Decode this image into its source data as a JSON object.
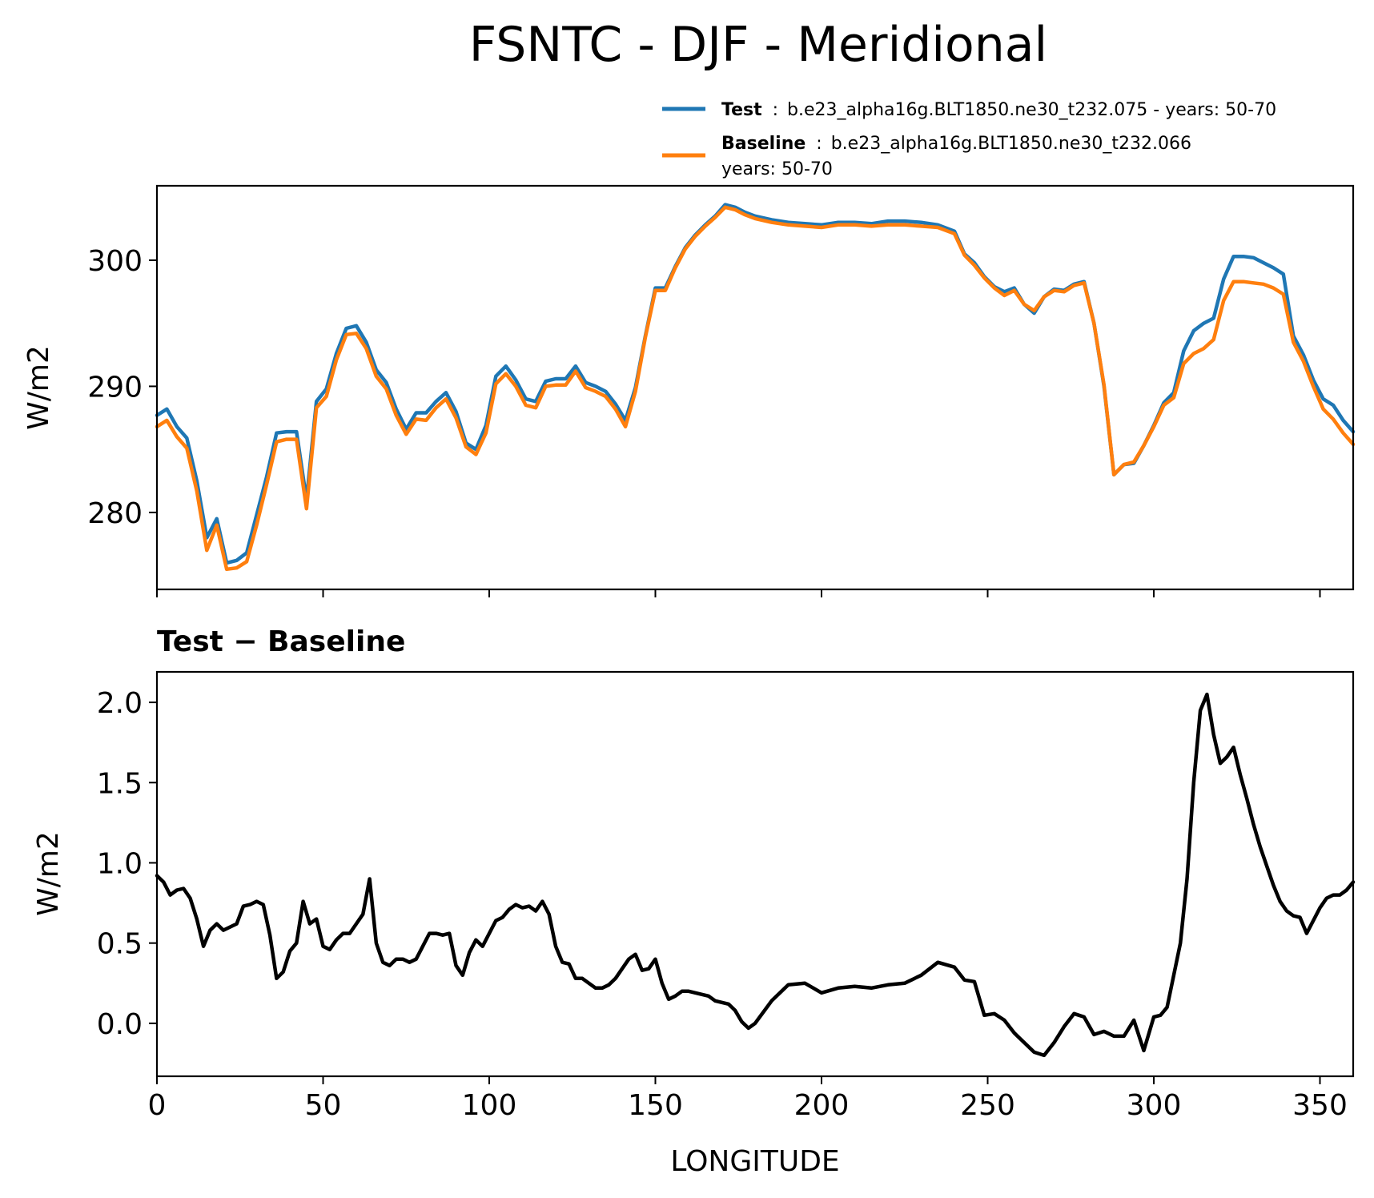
{
  "title": "FSNTC - DJF - Meridional",
  "colors": {
    "test": "#1f77b4",
    "baseline": "#ff7f0e",
    "diff": "#000000"
  },
  "legend": {
    "test_label": "Test",
    "test_sep": ":",
    "test_desc": "b.e23_alpha16g.BLT1850.ne30_t232.075 - years: 50-70",
    "baseline_label": "Baseline",
    "baseline_sep": ":",
    "baseline_desc": "b.e23_alpha16g.BLT1850.ne30_t232.066",
    "baseline_desc2": "years: 50-70"
  },
  "chart_data": [
    {
      "type": "line",
      "panel": "top",
      "title": "",
      "xlabel": "",
      "ylabel": "W/m2",
      "xlim": [
        0,
        360
      ],
      "ylim": [
        273.9,
        305.9
      ],
      "xticks": [
        0,
        50,
        100,
        150,
        200,
        250,
        300,
        350
      ],
      "yticks": [
        280,
        290,
        300
      ],
      "ytick_labels": [
        "280",
        "290",
        "300"
      ],
      "x": [
        0,
        3,
        6,
        9,
        12,
        15,
        18,
        21,
        24,
        27,
        30,
        33,
        36,
        39,
        42,
        45,
        48,
        51,
        54,
        57,
        60,
        63,
        66,
        69,
        72,
        75,
        78,
        81,
        84,
        87,
        90,
        93,
        96,
        99,
        102,
        105,
        108,
        111,
        114,
        117,
        120,
        123,
        126,
        129,
        132,
        135,
        138,
        141,
        144,
        147,
        150,
        153,
        156,
        159,
        162,
        165,
        168,
        171,
        174,
        177,
        180,
        185,
        190,
        195,
        200,
        205,
        210,
        215,
        220,
        225,
        230,
        235,
        240,
        243,
        246,
        249,
        252,
        255,
        258,
        261,
        264,
        267,
        270,
        273,
        276,
        279,
        282,
        285,
        288,
        291,
        294,
        297,
        300,
        303,
        306,
        309,
        312,
        315,
        318,
        321,
        324,
        327,
        330,
        333,
        336,
        339,
        342,
        345,
        348,
        351,
        354,
        357,
        360
      ],
      "series": [
        {
          "name": "Test",
          "values": [
            287.7,
            288.2,
            286.8,
            285.9,
            282.5,
            278.0,
            279.5,
            276.0,
            276.2,
            276.8,
            279.8,
            282.8,
            286.3,
            286.4,
            286.4,
            281.0,
            288.8,
            289.8,
            292.6,
            294.6,
            294.8,
            293.5,
            291.3,
            290.3,
            288.2,
            286.6,
            287.9,
            287.9,
            288.8,
            289.5,
            288.0,
            285.5,
            285.0,
            286.9,
            290.8,
            291.6,
            290.5,
            289.0,
            288.8,
            290.4,
            290.6,
            290.6,
            291.6,
            290.3,
            290.0,
            289.6,
            288.6,
            287.3,
            289.9,
            294.0,
            297.8,
            297.8,
            299.5,
            301.0,
            302.0,
            302.8,
            303.5,
            304.4,
            304.2,
            303.8,
            303.5,
            303.2,
            303.0,
            302.9,
            302.8,
            303.0,
            303.0,
            302.9,
            303.1,
            303.1,
            303.0,
            302.8,
            302.3,
            300.5,
            299.8,
            298.7,
            297.9,
            297.5,
            297.8,
            296.5,
            295.8,
            297.1,
            297.7,
            297.6,
            298.1,
            298.3,
            295.0,
            290.0,
            283.0,
            283.8,
            283.9,
            285.3,
            286.9,
            288.7,
            289.5,
            292.8,
            294.4,
            295.0,
            295.4,
            298.5,
            300.3,
            300.3,
            300.2,
            299.8,
            299.4,
            298.9,
            294.0,
            292.5,
            290.5,
            289.0,
            288.5,
            287.3,
            286.4
          ]
        },
        {
          "name": "Baseline",
          "values": [
            286.8,
            287.3,
            286.0,
            285.1,
            281.7,
            277.0,
            279.0,
            275.5,
            275.6,
            276.1,
            279.0,
            282.2,
            285.6,
            285.8,
            285.8,
            280.3,
            288.3,
            289.2,
            292.1,
            294.1,
            294.2,
            293.0,
            290.8,
            289.8,
            287.7,
            286.2,
            287.4,
            287.3,
            288.3,
            289.0,
            287.5,
            285.2,
            284.6,
            286.3,
            290.2,
            291.0,
            290.0,
            288.5,
            288.3,
            290.0,
            290.1,
            290.1,
            291.2,
            289.9,
            289.6,
            289.2,
            288.2,
            286.8,
            289.6,
            293.9,
            297.6,
            297.6,
            299.4,
            300.9,
            301.9,
            302.7,
            303.4,
            304.2,
            304.0,
            303.6,
            303.3,
            303.0,
            302.8,
            302.7,
            302.6,
            302.8,
            302.8,
            302.7,
            302.8,
            302.8,
            302.7,
            302.6,
            302.1,
            300.4,
            299.6,
            298.6,
            297.8,
            297.2,
            297.6,
            296.5,
            296.0,
            297.1,
            297.6,
            297.5,
            298.0,
            298.2,
            295.0,
            290.1,
            283.0,
            283.8,
            284.0,
            285.3,
            286.8,
            288.5,
            289.1,
            291.8,
            292.6,
            293.0,
            293.7,
            296.8,
            298.3,
            298.3,
            298.2,
            298.1,
            297.8,
            297.3,
            293.5,
            292.0,
            290.0,
            288.2,
            287.4,
            286.3,
            285.4
          ]
        }
      ]
    },
    {
      "type": "line",
      "panel": "bottom",
      "title": "Test − Baseline",
      "xlabel": "LONGITUDE",
      "ylabel": "W/m2",
      "xlim": [
        0,
        360
      ],
      "ylim": [
        -0.33,
        2.19
      ],
      "xticks": [
        0,
        50,
        100,
        150,
        200,
        250,
        300,
        350
      ],
      "xtick_labels": [
        "0",
        "50",
        "100",
        "150",
        "200",
        "250",
        "300",
        "350"
      ],
      "yticks": [
        0.0,
        0.5,
        1.0,
        1.5,
        2.0
      ],
      "ytick_labels": [
        "0.0",
        "0.5",
        "1.0",
        "1.5",
        "2.0"
      ],
      "x": [
        0,
        2,
        4,
        6,
        8,
        10,
        12,
        14,
        16,
        18,
        20,
        22,
        24,
        26,
        28,
        30,
        32,
        34,
        36,
        38,
        40,
        42,
        44,
        46,
        48,
        50,
        52,
        54,
        56,
        58,
        60,
        62,
        64,
        66,
        68,
        70,
        72,
        74,
        76,
        78,
        80,
        82,
        84,
        86,
        88,
        90,
        92,
        94,
        96,
        98,
        100,
        102,
        104,
        106,
        108,
        110,
        112,
        114,
        116,
        118,
        120,
        122,
        124,
        126,
        128,
        130,
        132,
        134,
        136,
        138,
        140,
        142,
        144,
        146,
        148,
        150,
        152,
        154,
        156,
        158,
        160,
        162,
        164,
        166,
        168,
        170,
        172,
        174,
        176,
        178,
        180,
        185,
        190,
        195,
        200,
        205,
        210,
        215,
        220,
        225,
        230,
        235,
        240,
        243,
        246,
        249,
        252,
        255,
        258,
        261,
        264,
        267,
        270,
        273,
        276,
        279,
        282,
        285,
        288,
        291,
        294,
        297,
        300,
        302,
        304,
        306,
        308,
        310,
        312,
        314,
        316,
        318,
        320,
        322,
        324,
        326,
        328,
        330,
        332,
        334,
        336,
        338,
        340,
        342,
        344,
        346,
        348,
        350,
        352,
        354,
        356,
        358,
        360
      ],
      "values": [
        0.92,
        0.88,
        0.8,
        0.83,
        0.84,
        0.78,
        0.65,
        0.48,
        0.58,
        0.62,
        0.58,
        0.6,
        0.62,
        0.73,
        0.74,
        0.76,
        0.74,
        0.55,
        0.28,
        0.32,
        0.45,
        0.5,
        0.76,
        0.62,
        0.65,
        0.48,
        0.46,
        0.52,
        0.56,
        0.56,
        0.62,
        0.68,
        0.9,
        0.5,
        0.38,
        0.36,
        0.4,
        0.4,
        0.38,
        0.4,
        0.48,
        0.56,
        0.56,
        0.55,
        0.56,
        0.36,
        0.3,
        0.44,
        0.52,
        0.48,
        0.56,
        0.64,
        0.66,
        0.71,
        0.74,
        0.72,
        0.73,
        0.7,
        0.76,
        0.68,
        0.48,
        0.38,
        0.37,
        0.28,
        0.28,
        0.25,
        0.22,
        0.22,
        0.24,
        0.28,
        0.34,
        0.4,
        0.43,
        0.33,
        0.34,
        0.4,
        0.25,
        0.15,
        0.17,
        0.2,
        0.2,
        0.19,
        0.18,
        0.17,
        0.14,
        0.13,
        0.12,
        0.08,
        0.01,
        -0.03,
        0.0,
        0.14,
        0.24,
        0.25,
        0.19,
        0.22,
        0.23,
        0.22,
        0.24,
        0.25,
        0.3,
        0.38,
        0.35,
        0.27,
        0.26,
        0.05,
        0.06,
        0.02,
        -0.06,
        -0.12,
        -0.18,
        -0.2,
        -0.12,
        -0.02,
        0.06,
        0.04,
        -0.07,
        -0.05,
        -0.08,
        -0.08,
        0.02,
        -0.17,
        0.04,
        0.05,
        0.1,
        0.3,
        0.5,
        0.9,
        1.5,
        1.95,
        2.05,
        1.8,
        1.62,
        1.66,
        1.72,
        1.55,
        1.4,
        1.24,
        1.1,
        0.98,
        0.86,
        0.76,
        0.7,
        0.67,
        0.66,
        0.56,
        0.64,
        0.72,
        0.78,
        0.8,
        0.8,
        0.83,
        0.88
      ]
    }
  ]
}
